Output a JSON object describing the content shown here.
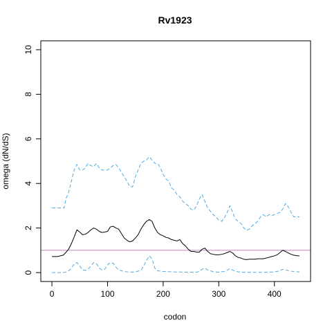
{
  "chart_data": {
    "type": "line",
    "title": "Rv1923",
    "xlabel": "codon",
    "ylabel": "omega (dN/dS)",
    "xlim": [
      -20,
      465
    ],
    "ylim": [
      -0.4,
      10.4
    ],
    "xticks": [
      0,
      100,
      200,
      300,
      400
    ],
    "yticks": [
      0,
      2,
      4,
      6,
      8,
      10
    ],
    "reference_line": {
      "y": 1,
      "color": "#c77fc7"
    },
    "colors": {
      "mean": "#000000",
      "bounds": "#4fa8e0",
      "axis": "#000000"
    },
    "series": [
      {
        "role": "upper",
        "style": "dashed",
        "x": [
          0,
          22,
          25,
          30,
          35,
          40,
          45,
          50,
          55,
          60,
          65,
          70,
          75,
          80,
          85,
          90,
          95,
          100,
          105,
          110,
          115,
          120,
          125,
          130,
          135,
          140,
          145,
          150,
          155,
          160,
          165,
          170,
          175,
          180,
          185,
          190,
          195,
          200,
          205,
          210,
          215,
          220,
          225,
          230,
          235,
          240,
          245,
          250,
          255,
          260,
          265,
          270,
          275,
          280,
          285,
          290,
          295,
          300,
          305,
          310,
          315,
          320,
          325,
          330,
          335,
          340,
          345,
          350,
          355,
          360,
          365,
          370,
          375,
          380,
          385,
          390,
          395,
          400,
          405,
          410,
          415,
          420,
          425,
          430,
          435,
          440,
          445
        ],
        "y": [
          2.9,
          2.9,
          3.3,
          3.6,
          4.1,
          4.6,
          4.85,
          4.6,
          4.6,
          4.7,
          4.9,
          4.8,
          4.75,
          4.9,
          4.7,
          4.6,
          4.6,
          4.6,
          4.7,
          4.8,
          4.85,
          4.7,
          4.5,
          4.3,
          4.1,
          3.85,
          3.85,
          4.3,
          4.6,
          4.9,
          5.0,
          5.05,
          5.2,
          5.05,
          4.9,
          4.9,
          4.7,
          4.4,
          4.2,
          4.1,
          3.8,
          3.7,
          3.5,
          3.4,
          3.2,
          3.1,
          3.0,
          2.85,
          2.8,
          3.0,
          3.3,
          3.5,
          3.2,
          2.9,
          2.75,
          2.6,
          2.5,
          2.35,
          2.3,
          2.45,
          2.7,
          3.0,
          2.7,
          2.4,
          2.3,
          2.2,
          2.0,
          1.9,
          1.95,
          2.1,
          2.2,
          2.3,
          2.5,
          2.6,
          2.5,
          2.6,
          2.55,
          2.6,
          2.65,
          2.7,
          2.85,
          3.1,
          2.95,
          2.7,
          2.5,
          2.5,
          2.5
        ]
      },
      {
        "role": "mean",
        "style": "solid",
        "x": [
          0,
          10,
          20,
          25,
          30,
          35,
          40,
          45,
          50,
          55,
          60,
          65,
          70,
          75,
          80,
          85,
          90,
          95,
          100,
          105,
          110,
          115,
          120,
          125,
          130,
          135,
          140,
          145,
          150,
          155,
          160,
          165,
          170,
          175,
          180,
          185,
          190,
          195,
          200,
          205,
          210,
          215,
          220,
          225,
          230,
          235,
          240,
          245,
          250,
          255,
          260,
          265,
          270,
          275,
          280,
          285,
          290,
          295,
          300,
          305,
          310,
          315,
          320,
          325,
          330,
          335,
          340,
          345,
          350,
          355,
          360,
          365,
          370,
          375,
          380,
          385,
          390,
          395,
          400,
          405,
          410,
          415,
          420,
          425,
          430,
          435,
          440,
          445
        ],
        "y": [
          0.72,
          0.72,
          0.78,
          0.9,
          1.05,
          1.3,
          1.6,
          1.92,
          1.82,
          1.7,
          1.72,
          1.8,
          1.92,
          2.0,
          1.95,
          1.85,
          1.8,
          1.82,
          1.85,
          2.05,
          2.08,
          2.0,
          1.95,
          1.75,
          1.55,
          1.45,
          1.38,
          1.42,
          1.55,
          1.7,
          1.95,
          2.15,
          2.3,
          2.38,
          2.3,
          2.0,
          1.8,
          1.7,
          1.65,
          1.58,
          1.55,
          1.48,
          1.45,
          1.42,
          1.48,
          1.3,
          1.2,
          1.05,
          0.95,
          0.95,
          0.92,
          0.92,
          1.05,
          1.1,
          0.95,
          0.85,
          0.82,
          0.8,
          0.8,
          0.82,
          0.85,
          0.9,
          0.95,
          0.88,
          0.75,
          0.68,
          0.65,
          0.6,
          0.58,
          0.6,
          0.6,
          0.6,
          0.62,
          0.62,
          0.62,
          0.65,
          0.68,
          0.72,
          0.75,
          0.8,
          0.9,
          1.0,
          0.95,
          0.88,
          0.82,
          0.78,
          0.76,
          0.75
        ]
      },
      {
        "role": "lower",
        "style": "dashed",
        "x": [
          0,
          20,
          25,
          30,
          35,
          40,
          45,
          50,
          55,
          60,
          65,
          70,
          75,
          80,
          85,
          90,
          95,
          100,
          105,
          110,
          115,
          120,
          125,
          130,
          135,
          140,
          150,
          160,
          165,
          170,
          175,
          180,
          185,
          190,
          200,
          220,
          240,
          260,
          265,
          270,
          275,
          280,
          290,
          300,
          310,
          315,
          320,
          330,
          340,
          360,
          380,
          400,
          410,
          415,
          420,
          430,
          440,
          445
        ],
        "y": [
          0.0,
          0.0,
          0.02,
          0.08,
          0.2,
          0.38,
          0.45,
          0.3,
          0.12,
          0.1,
          0.15,
          0.3,
          0.45,
          0.4,
          0.2,
          0.12,
          0.15,
          0.35,
          0.45,
          0.42,
          0.25,
          0.12,
          0.08,
          0.05,
          0.03,
          0.02,
          0.03,
          0.1,
          0.3,
          0.55,
          0.75,
          0.62,
          0.2,
          0.08,
          0.05,
          0.03,
          0.02,
          0.02,
          0.05,
          0.15,
          0.2,
          0.12,
          0.04,
          0.02,
          0.05,
          0.1,
          0.18,
          0.05,
          0.02,
          0.01,
          0.01,
          0.03,
          0.08,
          0.15,
          0.12,
          0.06,
          0.04,
          0.03
        ]
      }
    ]
  }
}
